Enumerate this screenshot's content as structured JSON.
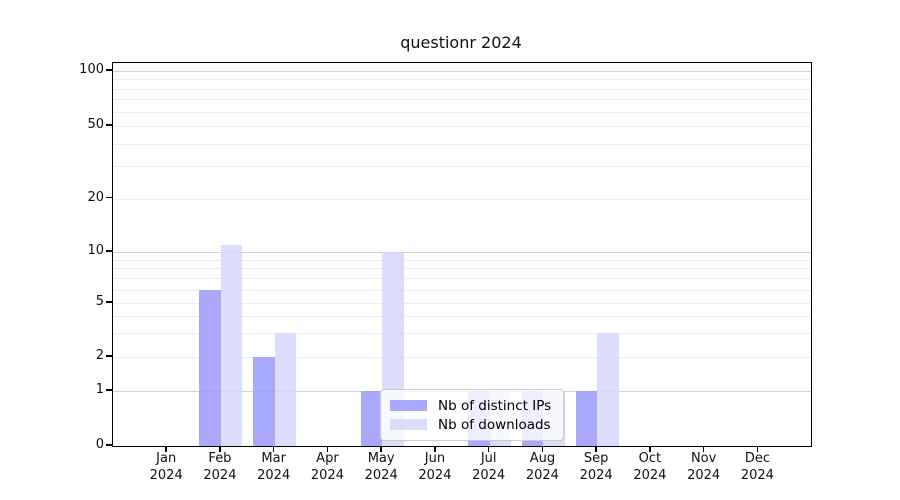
{
  "chart_data": {
    "type": "bar",
    "title": "questionr 2024",
    "xlabel": "",
    "ylabel": "",
    "categories": [
      "Jan",
      "Feb",
      "Mar",
      "Apr",
      "May",
      "Jun",
      "Jul",
      "Aug",
      "Sep",
      "Oct",
      "Nov",
      "Dec"
    ],
    "x_year_label": "2024",
    "series": [
      {
        "id": "distinct-ips",
        "name": "Nb of distinct IPs",
        "color": "rgba(154,154,252,0.85)",
        "color_hex": "#a9a9fb",
        "values": [
          0,
          6,
          2,
          0,
          1,
          0,
          1,
          1,
          1,
          0,
          0,
          0
        ]
      },
      {
        "id": "downloads",
        "name": "Nb of downloads",
        "color": "rgba(214,214,252,0.85)",
        "color_hex": "#dcdcfc",
        "values": [
          0,
          11,
          3,
          0,
          10,
          0,
          1,
          1,
          3,
          0,
          0,
          0
        ]
      }
    ],
    "yscale": "log-like with zero baseline",
    "ylim": [
      0,
      115
    ],
    "y_ticks": [
      0,
      1,
      2,
      5,
      10,
      20,
      50,
      100
    ],
    "major_gridlines": [
      1,
      10,
      100
    ],
    "minor_gridlines": [
      2,
      3,
      4,
      5,
      6,
      7,
      8,
      9,
      20,
      30,
      40,
      50,
      60,
      70,
      80,
      90
    ],
    "grid": true,
    "legend_position": "inside lower-center",
    "grid_major_color": "#d0d0d0",
    "grid_minor_color": "#ededed",
    "axis_color": "#000000"
  }
}
